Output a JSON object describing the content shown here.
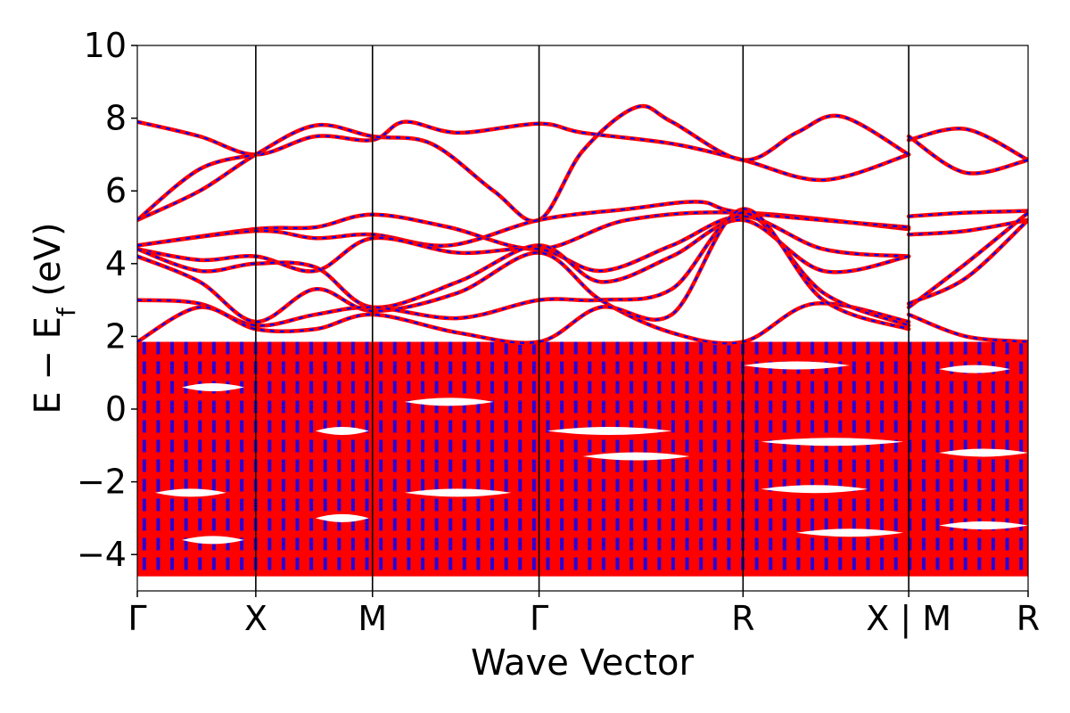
{
  "chart_data": {
    "type": "line",
    "title": "",
    "xlabel": "Wave Vector",
    "ylabel_main": "E − E",
    "ylabel_sub": "f",
    "ylabel_unit": " (eV)",
    "ylim": [
      -5,
      10
    ],
    "yticks": [
      {
        "value": -4,
        "label": "−4"
      },
      {
        "value": -2,
        "label": "−2"
      },
      {
        "value": 0,
        "label": "0"
      },
      {
        "value": 2,
        "label": "2"
      },
      {
        "value": 4,
        "label": "4"
      },
      {
        "value": 6,
        "label": "6"
      },
      {
        "value": 8,
        "label": "8"
      },
      {
        "value": 10,
        "label": "10"
      }
    ],
    "xlim": [
      0,
      1
    ],
    "kpoints": [
      {
        "x": 0.0,
        "label": "Γ"
      },
      {
        "x": 0.133,
        "label": "X"
      },
      {
        "x": 0.264,
        "label": "M"
      },
      {
        "x": 0.451,
        "label": "Γ"
      },
      {
        "x": 0.68,
        "label": "R"
      },
      {
        "x": 0.866,
        "label": "X | M"
      },
      {
        "x": 1.0,
        "label": "R"
      }
    ],
    "colors": {
      "band": "#ff0000",
      "band_dash": "#0000ff",
      "divider": "#000000"
    },
    "dense_region": {
      "ymin": -4.6,
      "ymax": 1.85
    },
    "series": [
      {
        "values": [
          [
            0.0,
            7.9
          ],
          [
            0.07,
            7.5
          ],
          [
            0.133,
            7.0
          ],
          [
            0.2,
            7.5
          ],
          [
            0.264,
            7.4
          ],
          [
            0.3,
            7.9
          ],
          [
            0.36,
            7.6
          ],
          [
            0.451,
            7.85
          ],
          [
            0.5,
            7.6
          ],
          [
            0.6,
            7.3
          ],
          [
            0.68,
            6.85
          ],
          [
            0.77,
            6.3
          ],
          [
            0.866,
            7.0
          ]
        ]
      },
      {
        "values": [
          [
            0.0,
            5.2
          ],
          [
            0.07,
            6.0
          ],
          [
            0.133,
            7.0
          ],
          [
            0.2,
            7.8
          ],
          [
            0.264,
            7.5
          ],
          [
            0.33,
            7.3
          ],
          [
            0.4,
            6.0
          ],
          [
            0.451,
            5.2
          ],
          [
            0.5,
            7.1
          ],
          [
            0.56,
            8.3
          ],
          [
            0.6,
            7.9
          ],
          [
            0.68,
            6.85
          ],
          [
            0.74,
            7.6
          ],
          [
            0.79,
            8.05
          ],
          [
            0.866,
            7.0
          ]
        ]
      },
      {
        "values": [
          [
            0.0,
            5.2
          ],
          [
            0.07,
            6.6
          ],
          [
            0.133,
            7.0
          ]
        ]
      },
      {
        "values": [
          [
            0.866,
            7.4
          ],
          [
            0.93,
            7.7
          ],
          [
            1.0,
            6.85
          ]
        ]
      },
      {
        "values": [
          [
            0.866,
            7.5
          ],
          [
            0.93,
            6.5
          ],
          [
            1.0,
            6.85
          ]
        ]
      },
      {
        "values": [
          [
            0.0,
            4.5
          ],
          [
            0.133,
            4.95
          ],
          [
            0.2,
            5.0
          ],
          [
            0.264,
            5.35
          ],
          [
            0.35,
            5.0
          ],
          [
            0.451,
            4.4
          ],
          [
            0.55,
            5.2
          ],
          [
            0.68,
            5.4
          ],
          [
            0.866,
            4.95
          ]
        ]
      },
      {
        "values": [
          [
            0.0,
            4.5
          ],
          [
            0.133,
            4.9
          ],
          [
            0.2,
            4.7
          ],
          [
            0.264,
            4.8
          ],
          [
            0.35,
            4.5
          ],
          [
            0.451,
            5.2
          ],
          [
            0.55,
            5.5
          ],
          [
            0.63,
            5.7
          ],
          [
            0.68,
            5.4
          ],
          [
            0.866,
            5.0
          ]
        ]
      },
      {
        "values": [
          [
            0.866,
            5.3
          ],
          [
            0.93,
            5.4
          ],
          [
            1.0,
            5.45
          ]
        ]
      },
      {
        "values": [
          [
            0.866,
            4.8
          ],
          [
            0.93,
            4.9
          ],
          [
            1.0,
            5.2
          ]
        ]
      },
      {
        "values": [
          [
            0.0,
            4.4
          ],
          [
            0.07,
            4.1
          ],
          [
            0.133,
            4.2
          ],
          [
            0.2,
            3.8
          ],
          [
            0.264,
            4.7
          ],
          [
            0.36,
            4.3
          ],
          [
            0.451,
            4.4
          ],
          [
            0.52,
            3.8
          ],
          [
            0.6,
            4.5
          ],
          [
            0.68,
            5.3
          ],
          [
            0.77,
            4.4
          ],
          [
            0.866,
            4.2
          ]
        ]
      },
      {
        "values": [
          [
            0.0,
            4.4
          ],
          [
            0.07,
            3.8
          ],
          [
            0.133,
            4.0
          ],
          [
            0.2,
            3.9
          ],
          [
            0.264,
            2.8
          ],
          [
            0.36,
            3.5
          ],
          [
            0.451,
            4.5
          ],
          [
            0.52,
            3.5
          ],
          [
            0.6,
            4.2
          ],
          [
            0.68,
            5.2
          ],
          [
            0.77,
            3.8
          ],
          [
            0.866,
            4.2
          ]
        ]
      },
      {
        "values": [
          [
            0.0,
            4.2
          ],
          [
            0.07,
            3.5
          ],
          [
            0.133,
            2.4
          ],
          [
            0.2,
            3.3
          ],
          [
            0.264,
            2.7
          ],
          [
            0.36,
            3.2
          ],
          [
            0.451,
            4.3
          ],
          [
            0.52,
            3.0
          ],
          [
            0.6,
            2.1
          ],
          [
            0.68,
            1.85
          ],
          [
            0.76,
            2.9
          ],
          [
            0.866,
            2.4
          ]
        ]
      },
      {
        "values": [
          [
            0.0,
            3.0
          ],
          [
            0.07,
            2.9
          ],
          [
            0.133,
            2.3
          ],
          [
            0.2,
            2.6
          ],
          [
            0.264,
            2.8
          ],
          [
            0.36,
            2.5
          ],
          [
            0.451,
            3.0
          ],
          [
            0.52,
            3.0
          ],
          [
            0.6,
            3.3
          ],
          [
            0.68,
            5.4
          ],
          [
            0.77,
            3.2
          ],
          [
            0.866,
            2.3
          ]
        ]
      },
      {
        "values": [
          [
            0.0,
            1.85
          ],
          [
            0.07,
            2.8
          ],
          [
            0.133,
            2.2
          ],
          [
            0.2,
            2.2
          ],
          [
            0.264,
            2.6
          ],
          [
            0.36,
            2.1
          ],
          [
            0.451,
            1.85
          ],
          [
            0.52,
            2.8
          ],
          [
            0.6,
            2.6
          ],
          [
            0.68,
            5.5
          ],
          [
            0.77,
            3.0
          ],
          [
            0.866,
            2.2
          ]
        ]
      },
      {
        "values": [
          [
            0.866,
            2.8
          ],
          [
            0.93,
            4.0
          ],
          [
            1.0,
            5.4
          ]
        ]
      },
      {
        "values": [
          [
            0.866,
            2.6
          ],
          [
            0.93,
            2.0
          ],
          [
            1.0,
            1.85
          ]
        ]
      },
      {
        "values": [
          [
            0.866,
            2.9
          ],
          [
            0.93,
            3.6
          ],
          [
            1.0,
            5.2
          ]
        ]
      }
    ]
  }
}
